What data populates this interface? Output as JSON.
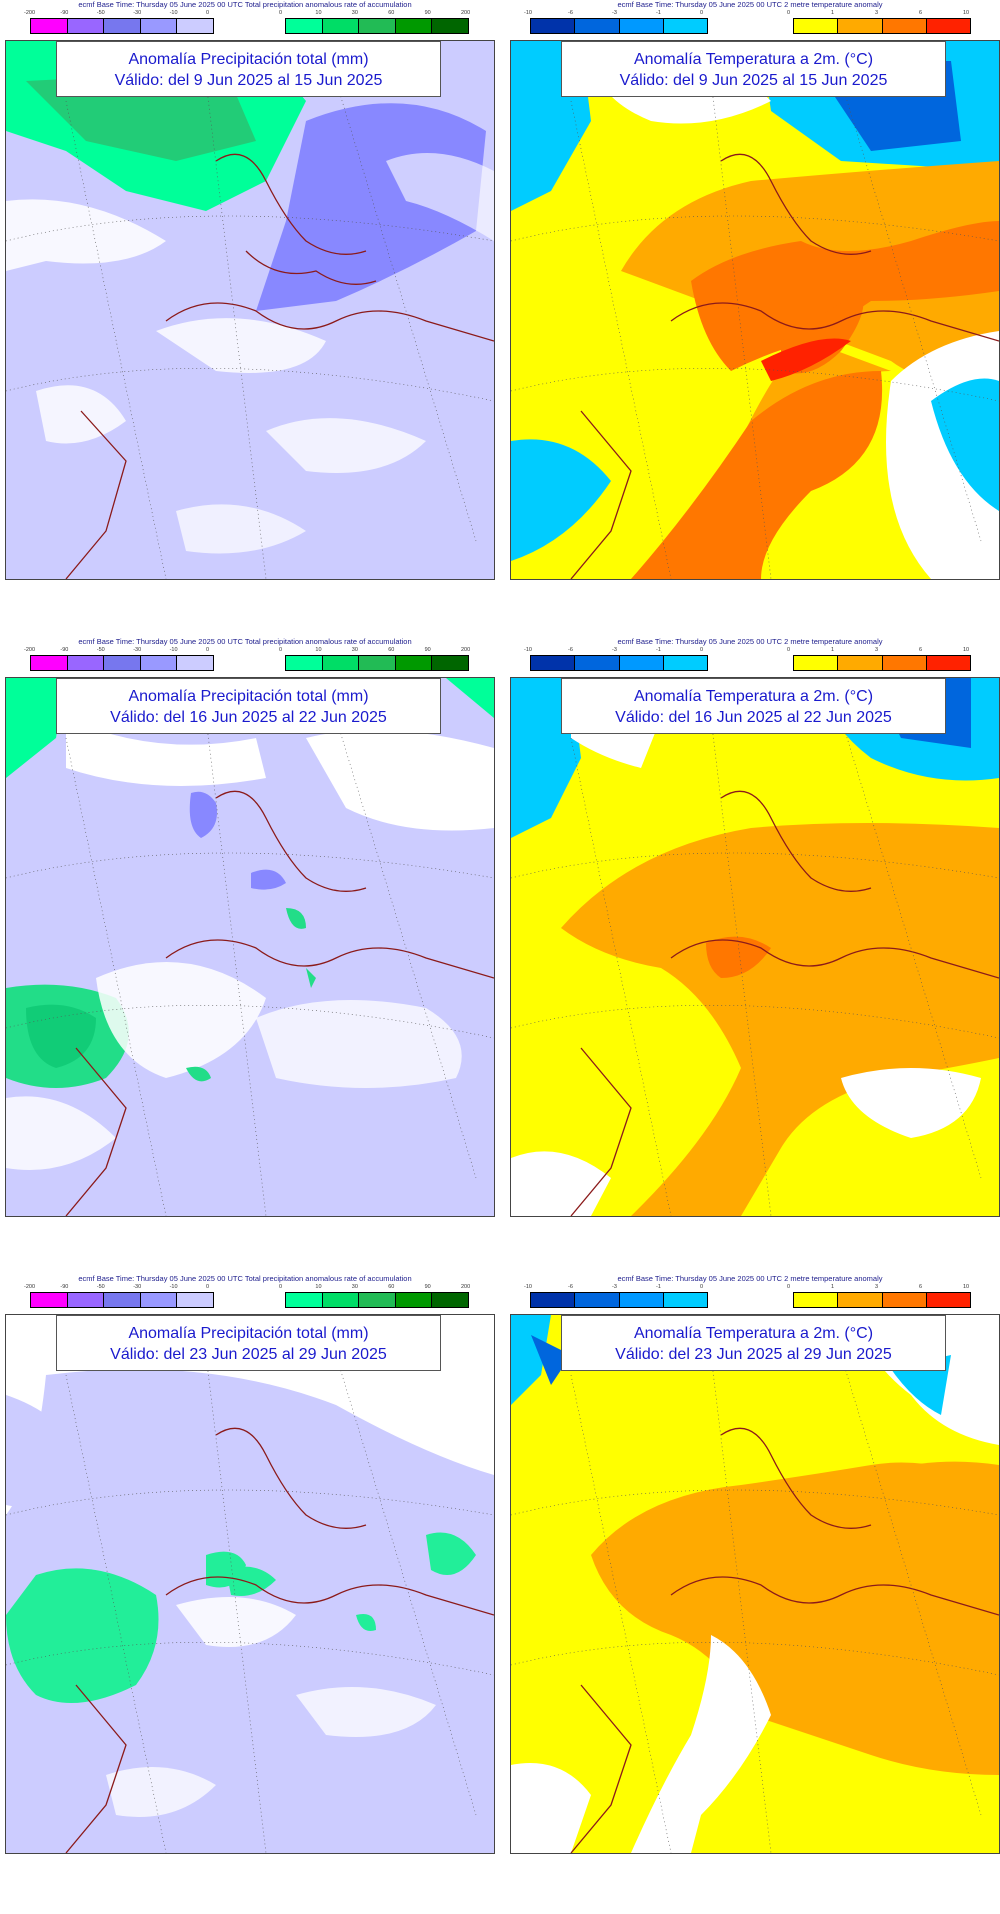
{
  "precip_header": "ecmf  Base Time: Thursday 05 June 2025 00 UTC Total precipitation anomalous rate of accumulation",
  "temp_header": "ecmf  Base Time: Thursday 05 June 2025 00 UTC 2 metre temperature anomaly",
  "precip_scale_left": [
    "-200",
    "-90",
    "-50",
    "-30",
    "-10",
    "0"
  ],
  "precip_scale_right": [
    "0",
    "10",
    "30",
    "60",
    "90",
    "200"
  ],
  "temp_scale_left": [
    "-10",
    "-6",
    "-3",
    "-1",
    "0"
  ],
  "temp_scale_right": [
    "0",
    "1",
    "3",
    "6",
    "10"
  ],
  "colors": {
    "precip_dry": [
      "#ff00ff",
      "#9966ff",
      "#7777ee",
      "#9999ff",
      "#ccccff"
    ],
    "precip_wet": [
      "#00ff99",
      "#00dd66",
      "#22bb55",
      "#009900",
      "#006600"
    ],
    "temp_cold": [
      "#0033aa",
      "#0066dd",
      "#0099ff",
      "#00ccff"
    ],
    "temp_warm": [
      "#ffff00",
      "#ffaa00",
      "#ff7700",
      "#ff2200"
    ],
    "coastline": "#8b1a1a",
    "title_text": "#1a1acd"
  },
  "panels": [
    {
      "title": "Anomalía Precipitación total (mm)",
      "valid": "Válido: del 9 Jun 2025 al 15 Jun 2025"
    },
    {
      "title": "Anomalía Temperatura a 2m. (°C)",
      "valid": "Válido: del 9 Jun 2025 al 15 Jun 2025"
    },
    {
      "title": "Anomalía Precipitación total (mm)",
      "valid": "Válido: del 16 Jun 2025 al 22 Jun 2025"
    },
    {
      "title": "Anomalía Temperatura a 2m. (°C)",
      "valid": "Válido: del 16 Jun 2025 al 22 Jun 2025"
    },
    {
      "title": "Anomalía Precipitación total (mm)",
      "valid": "Válido: del 23 Jun 2025 al 29 Jun 2025"
    },
    {
      "title": "Anomalía Temperatura a 2m. (°C)",
      "valid": "Válido: del 23 Jun 2025 al 29 Jun 2025"
    }
  ]
}
